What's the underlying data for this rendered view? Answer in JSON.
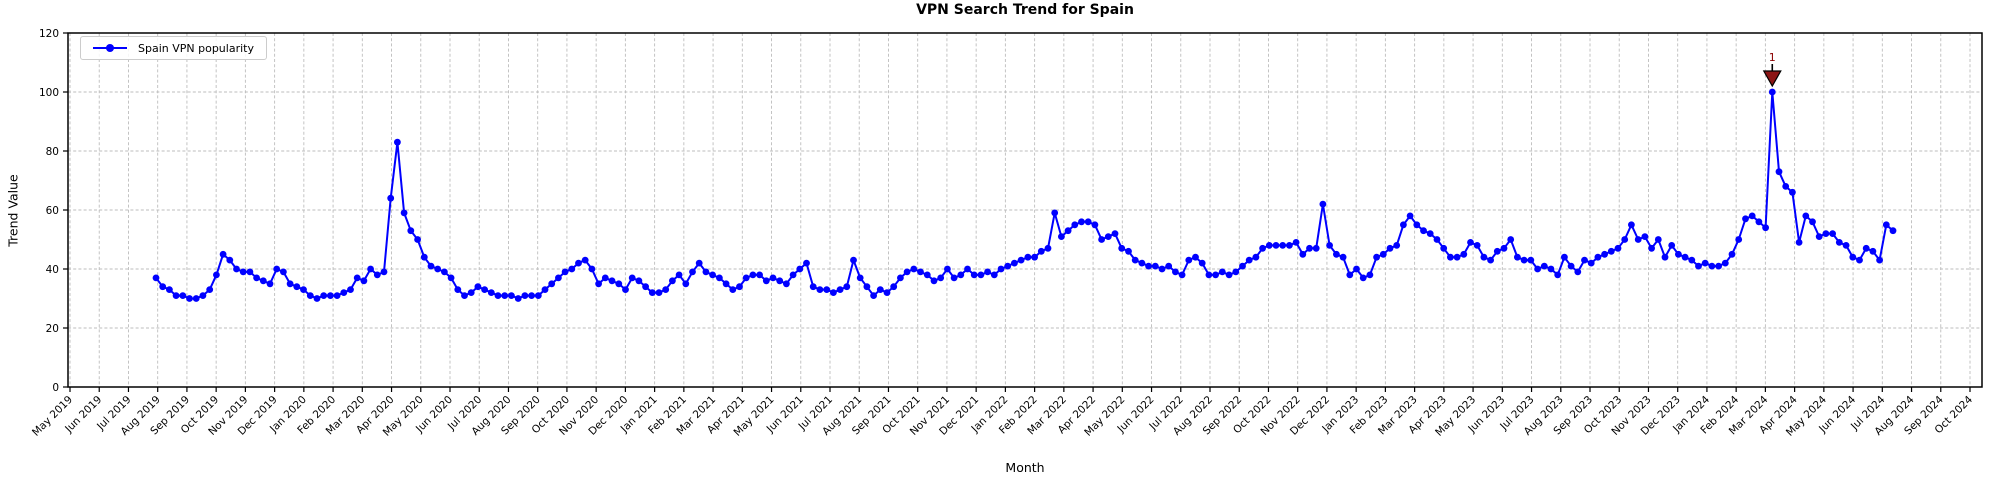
{
  "chart_data": {
    "type": "line",
    "title": "VPN Search Trend for Spain",
    "xlabel": "Month",
    "ylabel": "Trend Value",
    "ylim": [
      0,
      120
    ],
    "yticks": [
      0,
      20,
      40,
      60,
      80,
      100,
      120
    ],
    "grid": true,
    "legend_position": "upper left",
    "x_tick_labels": [
      "May 2019",
      "Jun 2019",
      "Jul 2019",
      "Aug 2019",
      "Sep 2019",
      "Oct 2019",
      "Nov 2019",
      "Dec 2019",
      "Jan 2020",
      "Feb 2020",
      "Mar 2020",
      "Apr 2020",
      "May 2020",
      "Jun 2020",
      "Jul 2020",
      "Aug 2020",
      "Sep 2020",
      "Oct 2020",
      "Nov 2020",
      "Dec 2020",
      "Jan 2021",
      "Feb 2021",
      "Mar 2021",
      "Apr 2021",
      "May 2021",
      "Jun 2021",
      "Jul 2021",
      "Aug 2021",
      "Sep 2021",
      "Oct 2021",
      "Nov 2021",
      "Dec 2021",
      "Jan 2022",
      "Feb 2022",
      "Mar 2022",
      "Apr 2022",
      "May 2022",
      "Jun 2022",
      "Jul 2022",
      "Aug 2022",
      "Sep 2022",
      "Oct 2022",
      "Nov 2022",
      "Dec 2022",
      "Jan 2023",
      "Feb 2023",
      "Mar 2023",
      "Apr 2023",
      "May 2023",
      "Jun 2023",
      "Jul 2023",
      "Aug 2023",
      "Sep 2023",
      "Oct 2023",
      "Nov 2023",
      "Dec 2023",
      "Jan 2024",
      "Feb 2024",
      "Mar 2024",
      "Apr 2024",
      "May 2024",
      "Jun 2024",
      "Jul 2024",
      "Aug 2024",
      "Sep 2024",
      "Oct 2024"
    ],
    "series": [
      {
        "name": "Spain VPN popularity",
        "color": "#0000ff",
        "cadence": "weekly",
        "first_point_month": "Aug 2019",
        "last_point_month": "Jul 2024",
        "values": [
          37,
          34,
          33,
          31,
          31,
          30,
          30,
          31,
          33,
          38,
          45,
          43,
          40,
          39,
          39,
          37,
          36,
          35,
          40,
          39,
          35,
          34,
          33,
          31,
          30,
          31,
          31,
          31,
          32,
          33,
          37,
          36,
          40,
          38,
          39,
          64,
          83,
          59,
          53,
          50,
          44,
          41,
          40,
          39,
          37,
          33,
          31,
          32,
          34,
          33,
          32,
          31,
          31,
          31,
          30,
          31,
          31,
          31,
          33,
          35,
          37,
          39,
          40,
          42,
          43,
          40,
          35,
          37,
          36,
          35,
          33,
          37,
          36,
          34,
          32,
          32,
          33,
          36,
          38,
          35,
          39,
          42,
          39,
          38,
          37,
          35,
          33,
          34,
          37,
          38,
          38,
          36,
          37,
          36,
          35,
          38,
          40,
          42,
          34,
          33,
          33,
          32,
          33,
          34,
          43,
          37,
          34,
          31,
          33,
          32,
          34,
          37,
          39,
          40,
          39,
          38,
          36,
          37,
          40,
          37,
          38,
          40,
          38,
          38,
          39,
          38,
          40,
          41,
          42,
          43,
          44,
          44,
          46,
          47,
          59,
          51,
          53,
          55,
          56,
          56,
          55,
          50,
          51,
          52,
          47,
          46,
          43,
          42,
          41,
          41,
          40,
          41,
          39,
          38,
          43,
          44,
          42,
          38,
          38,
          39,
          38,
          39,
          41,
          43,
          44,
          47,
          48,
          48,
          48,
          48,
          49,
          45,
          47,
          47,
          62,
          48,
          45,
          44,
          38,
          40,
          37,
          38,
          44,
          45,
          47,
          48,
          55,
          58,
          55,
          53,
          52,
          50,
          47,
          44,
          44,
          45,
          49,
          48,
          44,
          43,
          46,
          47,
          50,
          44,
          43,
          43,
          40,
          41,
          40,
          38,
          44,
          41,
          39,
          43,
          42,
          44,
          45,
          46,
          47,
          50,
          55,
          50,
          51,
          47,
          50,
          44,
          48,
          45,
          44,
          43,
          41,
          42,
          41,
          41,
          42,
          45,
          50,
          57,
          58,
          56,
          54,
          100,
          73,
          68,
          66,
          49,
          58,
          56,
          51,
          52,
          52,
          49,
          48,
          44,
          43,
          47,
          46,
          43,
          55,
          53
        ]
      }
    ],
    "annotation": {
      "text": "1",
      "color": "#8b0000",
      "point_index": 241,
      "value": 100
    }
  },
  "colors": {
    "line": "#0000ff",
    "annotation_fill": "#8b1515",
    "annotation_text": "#8b0000",
    "grid": "#bdbdbd",
    "axis": "#000000",
    "background": "#ffffff"
  }
}
